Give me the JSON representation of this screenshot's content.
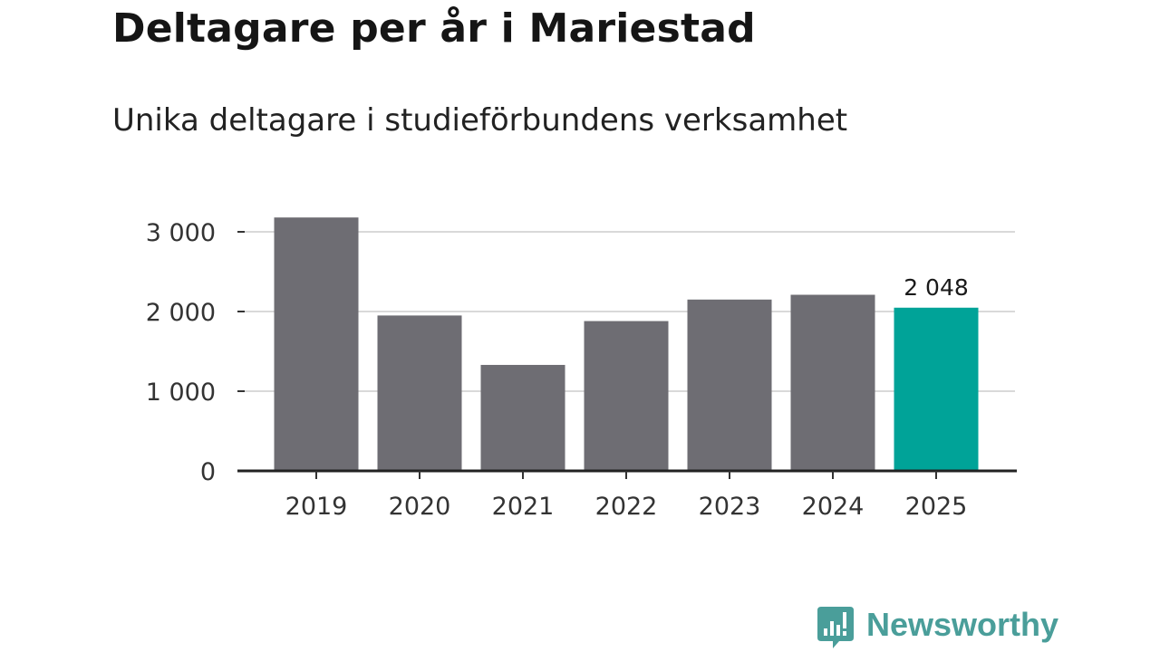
{
  "title": "Deltagare per år i Mariestad",
  "subtitle": "Unika deltagare i studieförbundens verksamhet",
  "chart_data": {
    "type": "bar",
    "title": "Deltagare per år i Mariestad",
    "subtitle": "Unika deltagare i studieförbundens verksamhet",
    "categories": [
      "2019",
      "2020",
      "2021",
      "2022",
      "2023",
      "2024",
      "2025"
    ],
    "values": [
      3180,
      1950,
      1330,
      1880,
      2150,
      2210,
      2048
    ],
    "ylim": [
      0,
      3000
    ],
    "yticks": [
      0,
      1000,
      2000,
      3000
    ],
    "ytick_labels": [
      "0",
      "1 000",
      "2 000",
      "3 000"
    ],
    "xlabel": "",
    "ylabel": "",
    "grid": true,
    "bar_color": "#6e6d73",
    "highlight_color": "#00a398",
    "highlight_index": 6,
    "value_labels": [
      {
        "index": 6,
        "text": "2 048"
      }
    ]
  },
  "branding": {
    "name": "Newsworthy",
    "color": "#4a9e9a",
    "icon": "chat-bar-chart-icon"
  }
}
